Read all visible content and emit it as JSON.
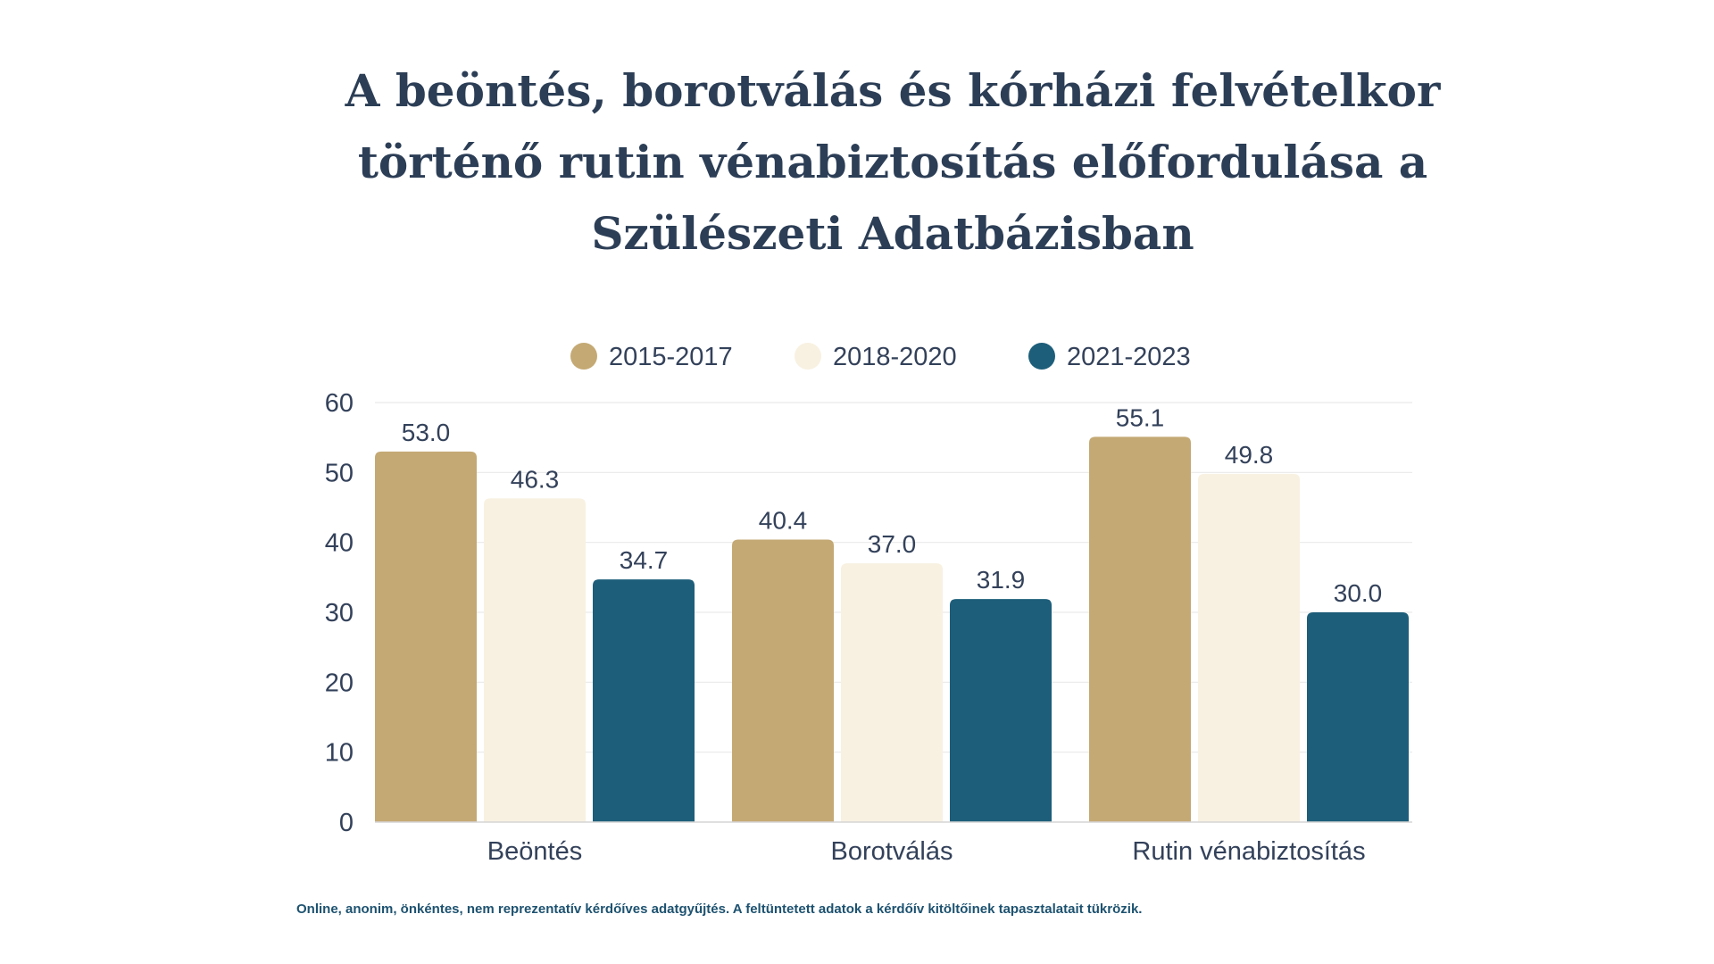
{
  "chart_data": {
    "type": "bar",
    "title": "A beöntés, borotválás és kórházi felvételkor történő rutin vénabiztosítás előfordulása a Szülészeti Adatbázisban",
    "categories": [
      "Beöntés",
      "Borotválás",
      "Rutin vénabiztosítás"
    ],
    "series": [
      {
        "name": "2015-2017",
        "color": "#c4a974",
        "values": [
          53.0,
          40.4,
          55.1
        ]
      },
      {
        "name": "2018-2020",
        "color": "#f8f1e1",
        "values": [
          46.3,
          37.0,
          49.8
        ]
      },
      {
        "name": "2021-2023",
        "color": "#1d5e7a",
        "values": [
          34.7,
          31.9,
          30.0
        ]
      }
    ],
    "value_labels": [
      [
        "53.0",
        "40.4",
        "55.1"
      ],
      [
        "46.3",
        "37.0",
        "49.8"
      ],
      [
        "34.7",
        "31.9",
        "30.0"
      ]
    ],
    "ylim": [
      0,
      60
    ],
    "yticks": [
      "0",
      "10",
      "20",
      "30",
      "40",
      "50",
      "60"
    ],
    "grid": true,
    "legend_position": "top-center",
    "xlabel": "",
    "ylabel": ""
  },
  "footnote": "Online, anonim, önkéntes, nem reprezentatív kérdőíves adatgyűjtés. A feltüntetett adatok a kérdőív kitöltőinek tapasztalatait tükrözik.",
  "colors": {
    "title": "#2c3e56",
    "text": "#33415a",
    "grid": "#e9e9e9",
    "footnote": "#1d5270"
  }
}
